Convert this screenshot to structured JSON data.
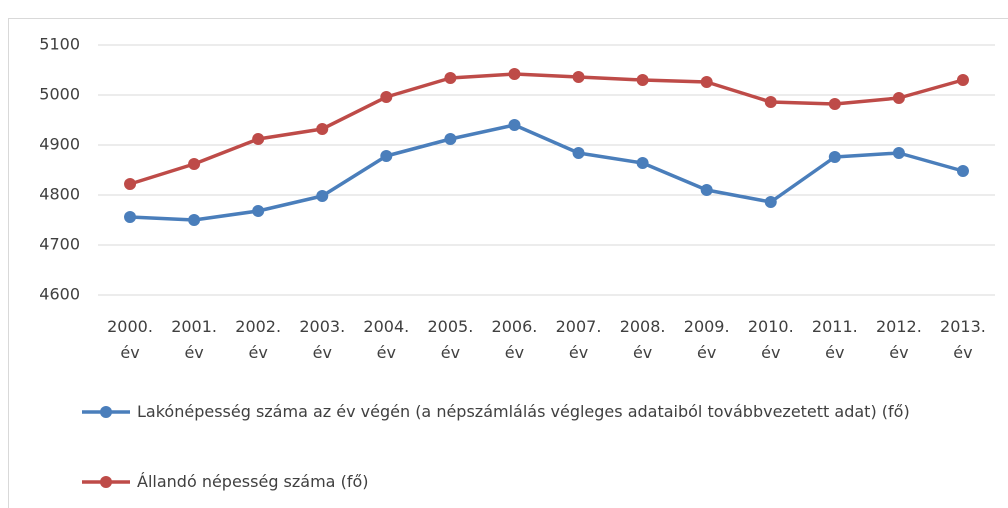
{
  "chart_data": {
    "type": "line",
    "categories": [
      "2000. év",
      "2001. év",
      "2002. év",
      "2003. év",
      "2004. év",
      "2005. év",
      "2006. év",
      "2007. év",
      "2008. év",
      "2009. év",
      "2010. év",
      "2011. év",
      "2012. év",
      "2013. év"
    ],
    "series": [
      {
        "name": "Lakónépesség száma az év végén (a népszámlálás végleges adataiból továbbvezetett adat) (fő)",
        "color": "#4a7ebb",
        "values": [
          4756,
          4750,
          4768,
          4798,
          4878,
          4912,
          4940,
          4884,
          4864,
          4810,
          4786,
          4876,
          4884,
          4848
        ]
      },
      {
        "name": "Állandó népesség száma (fő)",
        "color": "#be4b48",
        "values": [
          4822,
          4862,
          4912,
          4932,
          4996,
          5034,
          5042,
          5036,
          5030,
          5026,
          4986,
          4982,
          4994,
          5030
        ]
      }
    ],
    "ylim": [
      4600,
      5100
    ],
    "yticks": [
      4600,
      4700,
      4800,
      4900,
      5000,
      5100
    ],
    "grid": true,
    "legend": "bottom"
  }
}
